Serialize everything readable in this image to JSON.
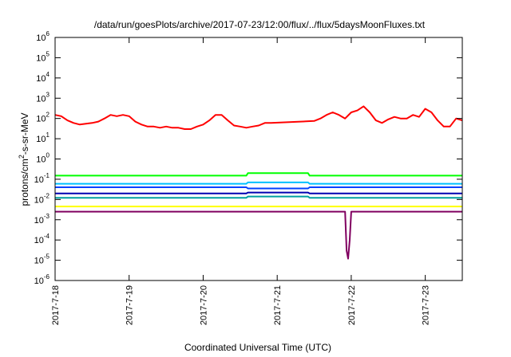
{
  "chart_data": {
    "type": "line",
    "title": "/data/run/goesPlots/archive/2017-07-23/12:00/flux/../flux/5daysMoonFluxes.txt",
    "xlabel": "Coordinated Universal Time (UTC)",
    "ylabel": "protons/cm²-s-sr-MeV",
    "ylabel_parts": {
      "pre": "protons/cm",
      "sup": "2",
      "post": "-s-sr-MeV"
    },
    "y_scale": "log",
    "ylim": [
      1e-06,
      1000000.0
    ],
    "y_ticks": [
      {
        "value": 1e-06,
        "base": "10",
        "exp": "-6"
      },
      {
        "value": 1e-05,
        "base": "10",
        "exp": "-5"
      },
      {
        "value": 0.0001,
        "base": "10",
        "exp": "-4"
      },
      {
        "value": 0.001,
        "base": "10",
        "exp": "-3"
      },
      {
        "value": 0.01,
        "base": "10",
        "exp": "-2"
      },
      {
        "value": 0.1,
        "base": "10",
        "exp": "-1"
      },
      {
        "value": 1,
        "base": "10",
        "exp": "0"
      },
      {
        "value": 10,
        "base": "10",
        "exp": "1"
      },
      {
        "value": 100,
        "base": "10",
        "exp": "2"
      },
      {
        "value": 1000,
        "base": "10",
        "exp": "3"
      },
      {
        "value": 10000,
        "base": "10",
        "exp": "4"
      },
      {
        "value": 100000,
        "base": "10",
        "exp": "5"
      },
      {
        "value": 1000000,
        "base": "10",
        "exp": "6"
      }
    ],
    "xlim": [
      "2017-07-18 00:00",
      "2017-07-23 12:00"
    ],
    "x_ticks": [
      "2017-7-18",
      "2017-7-19",
      "2017-7-20",
      "2017-7-21",
      "2017-7-22",
      "2017-7-23"
    ],
    "grid": false,
    "legend": "none",
    "series": [
      {
        "color": "#ff0000",
        "values": [
          [
            "2017-07-18 00:00",
            150
          ],
          [
            "2017-07-18 02:00",
            130
          ],
          [
            "2017-07-18 04:00",
            80
          ],
          [
            "2017-07-18 06:00",
            60
          ],
          [
            "2017-07-18 08:00",
            50
          ],
          [
            "2017-07-18 10:00",
            55
          ],
          [
            "2017-07-18 12:00",
            60
          ],
          [
            "2017-07-18 14:00",
            70
          ],
          [
            "2017-07-18 16:00",
            100
          ],
          [
            "2017-07-18 18:00",
            150
          ],
          [
            "2017-07-18 20:00",
            130
          ],
          [
            "2017-07-18 22:00",
            150
          ],
          [
            "2017-07-19 00:00",
            130
          ],
          [
            "2017-07-19 02:00",
            70
          ],
          [
            "2017-07-19 04:00",
            50
          ],
          [
            "2017-07-19 06:00",
            40
          ],
          [
            "2017-07-19 08:00",
            40
          ],
          [
            "2017-07-19 10:00",
            35
          ],
          [
            "2017-07-19 12:00",
            40
          ],
          [
            "2017-07-19 14:00",
            35
          ],
          [
            "2017-07-19 16:00",
            35
          ],
          [
            "2017-07-19 18:00",
            30
          ],
          [
            "2017-07-19 20:00",
            30
          ],
          [
            "2017-07-19 22:00",
            40
          ],
          [
            "2017-07-20 00:00",
            50
          ],
          [
            "2017-07-20 02:00",
            80
          ],
          [
            "2017-07-20 04:00",
            150
          ],
          [
            "2017-07-20 06:00",
            150
          ],
          [
            "2017-07-20 08:00",
            80
          ],
          [
            "2017-07-20 10:00",
            45
          ],
          [
            "2017-07-20 12:00",
            40
          ],
          [
            "2017-07-20 14:00",
            35
          ],
          [
            "2017-07-20 16:00",
            40
          ],
          [
            "2017-07-20 18:00",
            45
          ],
          [
            "2017-07-20 20:00",
            60
          ],
          [
            "2017-07-20 22:00",
            60
          ],
          [
            "2017-07-21 12:00",
            75
          ],
          [
            "2017-07-21 14:00",
            100
          ],
          [
            "2017-07-21 16:00",
            150
          ],
          [
            "2017-07-21 18:00",
            200
          ],
          [
            "2017-07-21 20:00",
            150
          ],
          [
            "2017-07-21 22:00",
            100
          ],
          [
            "2017-07-22 00:00",
            200
          ],
          [
            "2017-07-22 02:00",
            250
          ],
          [
            "2017-07-22 04:00",
            400
          ],
          [
            "2017-07-22 06:00",
            200
          ],
          [
            "2017-07-22 08:00",
            80
          ],
          [
            "2017-07-22 10:00",
            60
          ],
          [
            "2017-07-22 12:00",
            90
          ],
          [
            "2017-07-22 14:00",
            120
          ],
          [
            "2017-07-22 16:00",
            100
          ],
          [
            "2017-07-22 18:00",
            100
          ],
          [
            "2017-07-22 20:00",
            150
          ],
          [
            "2017-07-22 22:00",
            120
          ],
          [
            "2017-07-23 00:00",
            300
          ],
          [
            "2017-07-23 02:00",
            200
          ],
          [
            "2017-07-23 04:00",
            80
          ],
          [
            "2017-07-23 06:00",
            40
          ],
          [
            "2017-07-23 08:00",
            40
          ],
          [
            "2017-07-23 10:00",
            100
          ],
          [
            "2017-07-23 12:00",
            80
          ]
        ]
      },
      {
        "color": "#00ff00",
        "values": [
          [
            "2017-07-18 00:00",
            0.15
          ],
          [
            "2017-07-19 00:00",
            0.15
          ],
          [
            "2017-07-20 00:00",
            0.15
          ],
          [
            "2017-07-20 14:00",
            0.15
          ],
          [
            "2017-07-20 14:30",
            0.2
          ],
          [
            "2017-07-21 00:00",
            0.2
          ],
          [
            "2017-07-21 10:00",
            0.2
          ],
          [
            "2017-07-21 10:30",
            0.15
          ],
          [
            "2017-07-22 00:00",
            0.15
          ],
          [
            "2017-07-23 00:00",
            0.15
          ],
          [
            "2017-07-23 12:00",
            0.15
          ]
        ]
      },
      {
        "color": "#00c0ff",
        "values": [
          [
            "2017-07-18 00:00",
            0.06
          ],
          [
            "2017-07-19 00:00",
            0.06
          ],
          [
            "2017-07-20 00:00",
            0.06
          ],
          [
            "2017-07-20 14:00",
            0.06
          ],
          [
            "2017-07-20 14:30",
            0.07
          ],
          [
            "2017-07-21 00:00",
            0.07
          ],
          [
            "2017-07-21 10:00",
            0.07
          ],
          [
            "2017-07-21 10:30",
            0.06
          ],
          [
            "2017-07-22 00:00",
            0.06
          ],
          [
            "2017-07-23 00:00",
            0.06
          ],
          [
            "2017-07-23 12:00",
            0.06
          ]
        ]
      },
      {
        "color": "#0040ff",
        "values": [
          [
            "2017-07-18 00:00",
            0.04
          ],
          [
            "2017-07-19 00:00",
            0.04
          ],
          [
            "2017-07-20 00:00",
            0.04
          ],
          [
            "2017-07-20 14:00",
            0.04
          ],
          [
            "2017-07-20 14:30",
            0.035
          ],
          [
            "2017-07-21 00:00",
            0.035
          ],
          [
            "2017-07-21 10:00",
            0.035
          ],
          [
            "2017-07-21 10:30",
            0.04
          ],
          [
            "2017-07-22 00:00",
            0.04
          ],
          [
            "2017-07-23 00:00",
            0.04
          ],
          [
            "2017-07-23 12:00",
            0.04
          ]
        ]
      },
      {
        "color": "#0000b0",
        "values": [
          [
            "2017-07-18 00:00",
            0.02
          ],
          [
            "2017-07-19 00:00",
            0.02
          ],
          [
            "2017-07-20 00:00",
            0.02
          ],
          [
            "2017-07-20 14:00",
            0.02
          ],
          [
            "2017-07-20 14:30",
            0.022
          ],
          [
            "2017-07-21 00:00",
            0.022
          ],
          [
            "2017-07-21 10:00",
            0.022
          ],
          [
            "2017-07-21 10:30",
            0.02
          ],
          [
            "2017-07-22 00:00",
            0.02
          ],
          [
            "2017-07-23 00:00",
            0.02
          ],
          [
            "2017-07-23 12:00",
            0.02
          ]
        ]
      },
      {
        "color": "#00a0a0",
        "values": [
          [
            "2017-07-18 00:00",
            0.012
          ],
          [
            "2017-07-19 00:00",
            0.012
          ],
          [
            "2017-07-20 00:00",
            0.012
          ],
          [
            "2017-07-20 14:00",
            0.012
          ],
          [
            "2017-07-20 14:30",
            0.014
          ],
          [
            "2017-07-21 00:00",
            0.014
          ],
          [
            "2017-07-21 10:00",
            0.014
          ],
          [
            "2017-07-21 10:30",
            0.012
          ],
          [
            "2017-07-22 00:00",
            0.012
          ],
          [
            "2017-07-23 00:00",
            0.012
          ],
          [
            "2017-07-23 12:00",
            0.012
          ]
        ]
      },
      {
        "color": "#ffff00",
        "values": [
          [
            "2017-07-18 00:00",
            0.0045
          ],
          [
            "2017-07-19 00:00",
            0.0045
          ],
          [
            "2017-07-20 00:00",
            0.0045
          ],
          [
            "2017-07-21 00:00",
            0.0045
          ],
          [
            "2017-07-22 00:00",
            0.0045
          ],
          [
            "2017-07-23 00:00",
            0.0045
          ],
          [
            "2017-07-23 12:00",
            0.0045
          ]
        ]
      },
      {
        "color": "#800060",
        "values": [
          [
            "2017-07-18 00:00",
            0.0025
          ],
          [
            "2017-07-19 00:00",
            0.0025
          ],
          [
            "2017-07-20 00:00",
            0.0025
          ],
          [
            "2017-07-21 00:00",
            0.0025
          ],
          [
            "2017-07-21 22:00",
            0.0025
          ],
          [
            "2017-07-21 22:30",
            3e-05
          ],
          [
            "2017-07-21 23:00",
            1.2e-05
          ],
          [
            "2017-07-21 23:30",
            0.0001
          ],
          [
            "2017-07-22 00:00",
            0.0025
          ],
          [
            "2017-07-23 00:00",
            0.0025
          ],
          [
            "2017-07-23 12:00",
            0.0025
          ]
        ]
      }
    ]
  }
}
